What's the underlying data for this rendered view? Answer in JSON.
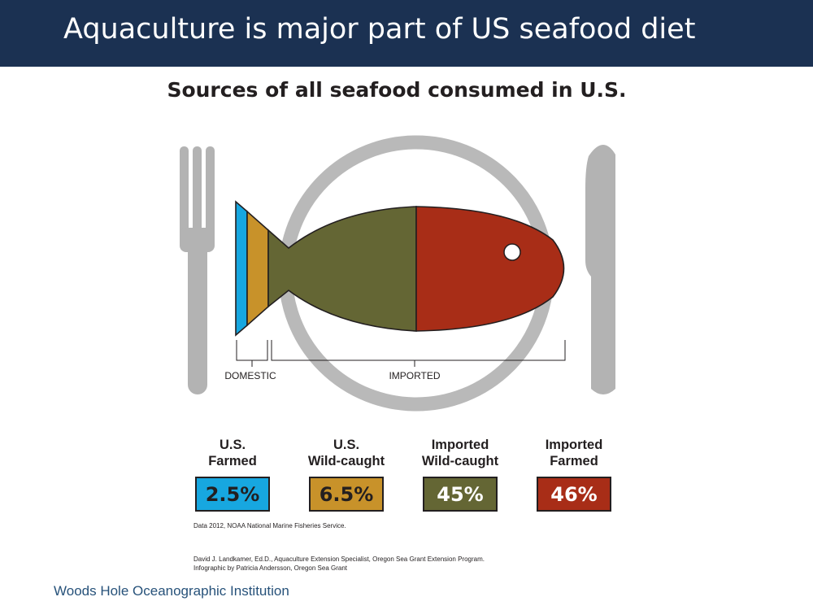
{
  "slide": {
    "title": "Aquaculture is major part of US seafood diet",
    "footer": "Woods Hole Oceanographic Institution"
  },
  "chart_data": {
    "type": "pie",
    "title": "Sources of all seafood consumed in U.S.",
    "categories": [
      "U.S. Farmed",
      "U.S. Wild-caught",
      "Imported Wild-caught",
      "Imported Farmed"
    ],
    "labels": [
      [
        "U.S.",
        "Farmed"
      ],
      [
        "U.S.",
        "Wild-caught"
      ],
      [
        "Imported",
        "Wild-caught"
      ],
      [
        "Imported",
        "Farmed"
      ]
    ],
    "values": [
      2.5,
      6.5,
      45,
      46
    ],
    "value_labels": [
      "2.5%",
      "6.5%",
      "45%",
      "46%"
    ],
    "groups": [
      {
        "name": "DOMESTIC",
        "members": [
          "U.S. Farmed",
          "U.S. Wild-caught"
        ]
      },
      {
        "name": "IMPORTED",
        "members": [
          "Imported Wild-caught",
          "Imported Farmed"
        ]
      }
    ],
    "colors": [
      "#17a7e0",
      "#c8922a",
      "#646634",
      "#a82d17"
    ],
    "value_text_colors": [
      "#231f20",
      "#231f20",
      "#ffffff",
      "#ffffff"
    ]
  },
  "notes": {
    "source": "Data 2012, NOAA National Marine Fisheries Service.",
    "credit_line1": "David J. Landkamer, Ed.D., Aquaculture Extension Specialist, Oregon Sea Grant Extension Program.",
    "credit_line2": "Infographic by Patricia Andersson, Oregon Sea Grant"
  }
}
